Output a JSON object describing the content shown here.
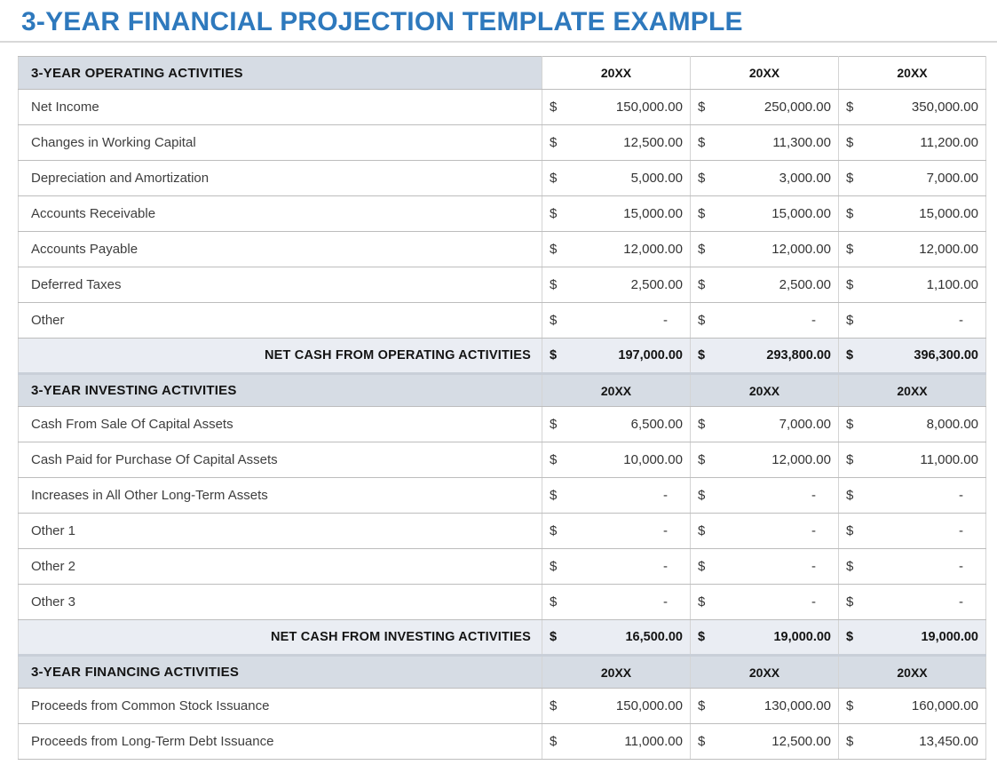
{
  "page": {
    "title": "3-YEAR FINANCIAL PROJECTION TEMPLATE EXAMPLE"
  },
  "theme": {
    "title_color": "#2E79BD",
    "section_header_bg": "#D6DCE4",
    "total_row_bg": "#EAEDF3"
  },
  "currency_symbol": "$",
  "sections": [
    {
      "header": {
        "label": "3-YEAR OPERATING ACTIVITIES",
        "year_columns": [
          "20XX",
          "20XX",
          "20XX"
        ],
        "year_cells_filled": false
      },
      "rows": [
        {
          "label": "Net Income",
          "values": [
            "150,000.00",
            "250,000.00",
            "350,000.00"
          ]
        },
        {
          "label": "Changes in Working Capital",
          "values": [
            "12,500.00",
            "11,300.00",
            "11,200.00"
          ]
        },
        {
          "label": "Depreciation and Amortization",
          "values": [
            "5,000.00",
            "3,000.00",
            "7,000.00"
          ]
        },
        {
          "label": "Accounts Receivable",
          "values": [
            "15,000.00",
            "15,000.00",
            "15,000.00"
          ]
        },
        {
          "label": "Accounts Payable",
          "values": [
            "12,000.00",
            "12,000.00",
            "12,000.00"
          ]
        },
        {
          "label": "Deferred Taxes",
          "values": [
            "2,500.00",
            "2,500.00",
            "1,100.00"
          ]
        },
        {
          "label": "Other",
          "values": [
            "-",
            "-",
            "-"
          ]
        }
      ],
      "total": {
        "label": "NET CASH FROM OPERATING ACTIVITIES",
        "values": [
          "197,000.00",
          "293,800.00",
          "396,300.00"
        ]
      }
    },
    {
      "header": {
        "label": "3-YEAR INVESTING ACTIVITIES",
        "year_columns": [
          "20XX",
          "20XX",
          "20XX"
        ],
        "year_cells_filled": true
      },
      "rows": [
        {
          "label": "Cash From Sale Of Capital Assets",
          "values": [
            "6,500.00",
            "7,000.00",
            "8,000.00"
          ]
        },
        {
          "label": "Cash Paid for Purchase Of Capital Assets",
          "values": [
            "10,000.00",
            "12,000.00",
            "11,000.00"
          ]
        },
        {
          "label": "Increases in All Other Long-Term Assets",
          "values": [
            "-",
            "-",
            "-"
          ]
        },
        {
          "label": "Other 1",
          "values": [
            "-",
            "-",
            "-"
          ]
        },
        {
          "label": "Other 2",
          "values": [
            "-",
            "-",
            "-"
          ]
        },
        {
          "label": "Other 3",
          "values": [
            "-",
            "-",
            "-"
          ]
        }
      ],
      "total": {
        "label": "NET CASH FROM INVESTING ACTIVITIES",
        "values": [
          "16,500.00",
          "19,000.00",
          "19,000.00"
        ]
      }
    },
    {
      "header": {
        "label": "3-YEAR FINANCING ACTIVITIES",
        "year_columns": [
          "20XX",
          "20XX",
          "20XX"
        ],
        "year_cells_filled": true
      },
      "rows": [
        {
          "label": "Proceeds from Common Stock Issuance",
          "values": [
            "150,000.00",
            "130,000.00",
            "160,000.00"
          ]
        },
        {
          "label": "Proceeds from Long-Term Debt Issuance",
          "values": [
            "11,000.00",
            "12,500.00",
            "13,450.00"
          ]
        }
      ]
    }
  ]
}
